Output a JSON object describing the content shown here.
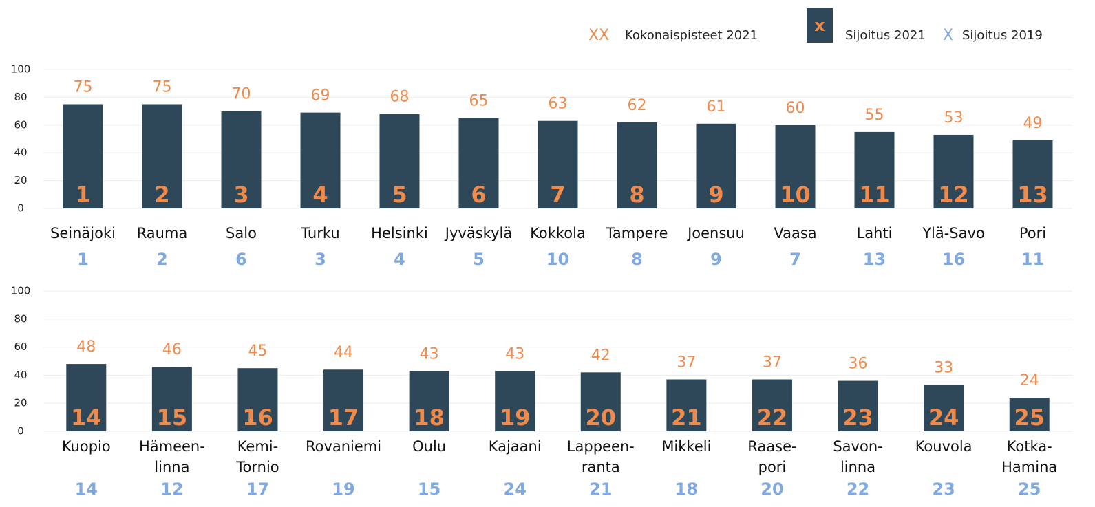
{
  "legend": [
    {
      "symbol": "XX",
      "label": "Kokonaispisteet 2021",
      "color": "#f08a4b"
    },
    {
      "symbol": "x",
      "label": "Sijoitus 2021",
      "color": "#f08a4b",
      "box": "#2e4859"
    },
    {
      "symbol": "X",
      "label": "Sijoitus 2019",
      "color": "#7fa9e0"
    }
  ],
  "chart_data": [
    {
      "type": "bar",
      "color": "#2e4859",
      "label_color": "#f08a4b",
      "rank_color": "#7fa9e0",
      "categories": [
        [
          "Seinäjoki"
        ],
        [
          "Rauma"
        ],
        [
          "Salo"
        ],
        [
          "Turku"
        ],
        [
          "Helsinki"
        ],
        [
          "Jyväskylä"
        ],
        [
          "Kokkola"
        ],
        [
          "Tampere"
        ],
        [
          "Joensuu"
        ],
        [
          "Vaasa"
        ],
        [
          "Lahti"
        ],
        [
          "Ylä-Savo"
        ],
        [
          "Pori"
        ]
      ],
      "values": [
        75,
        75,
        70,
        69,
        68,
        65,
        63,
        62,
        61,
        60,
        55,
        53,
        49
      ],
      "ranks_2021": [
        1,
        2,
        3,
        4,
        5,
        6,
        7,
        8,
        9,
        10,
        11,
        12,
        13
      ],
      "ranks_2019": [
        1,
        2,
        6,
        3,
        4,
        5,
        10,
        8,
        9,
        7,
        13,
        16,
        11
      ],
      "ylim": [
        0,
        100
      ],
      "yticks": [
        0,
        20,
        40,
        60,
        80,
        100
      ],
      "grid": true
    },
    {
      "type": "bar",
      "color": "#2e4859",
      "label_color": "#f08a4b",
      "rank_color": "#7fa9e0",
      "categories": [
        [
          "Kuopio"
        ],
        [
          "Hämeen-",
          "linna"
        ],
        [
          "Kemi-",
          "Tornio"
        ],
        [
          "Rovaniemi"
        ],
        [
          "Oulu"
        ],
        [
          "Kajaani"
        ],
        [
          "Lappeen-",
          "ranta"
        ],
        [
          "Mikkeli"
        ],
        [
          "Raase-",
          "pori"
        ],
        [
          "Savon-",
          "linna"
        ],
        [
          "Kouvola"
        ],
        [
          "Kotka-",
          "Hamina"
        ]
      ],
      "values": [
        48,
        46,
        45,
        44,
        43,
        43,
        42,
        37,
        37,
        36,
        33,
        24
      ],
      "ranks_2021": [
        14,
        15,
        16,
        17,
        18,
        19,
        20,
        21,
        22,
        23,
        24,
        25
      ],
      "ranks_2019": [
        14,
        12,
        17,
        19,
        15,
        24,
        21,
        18,
        20,
        22,
        23,
        25
      ],
      "ylim": [
        0,
        100
      ],
      "yticks": [
        0,
        20,
        40,
        60,
        80,
        100
      ],
      "grid": true
    }
  ]
}
